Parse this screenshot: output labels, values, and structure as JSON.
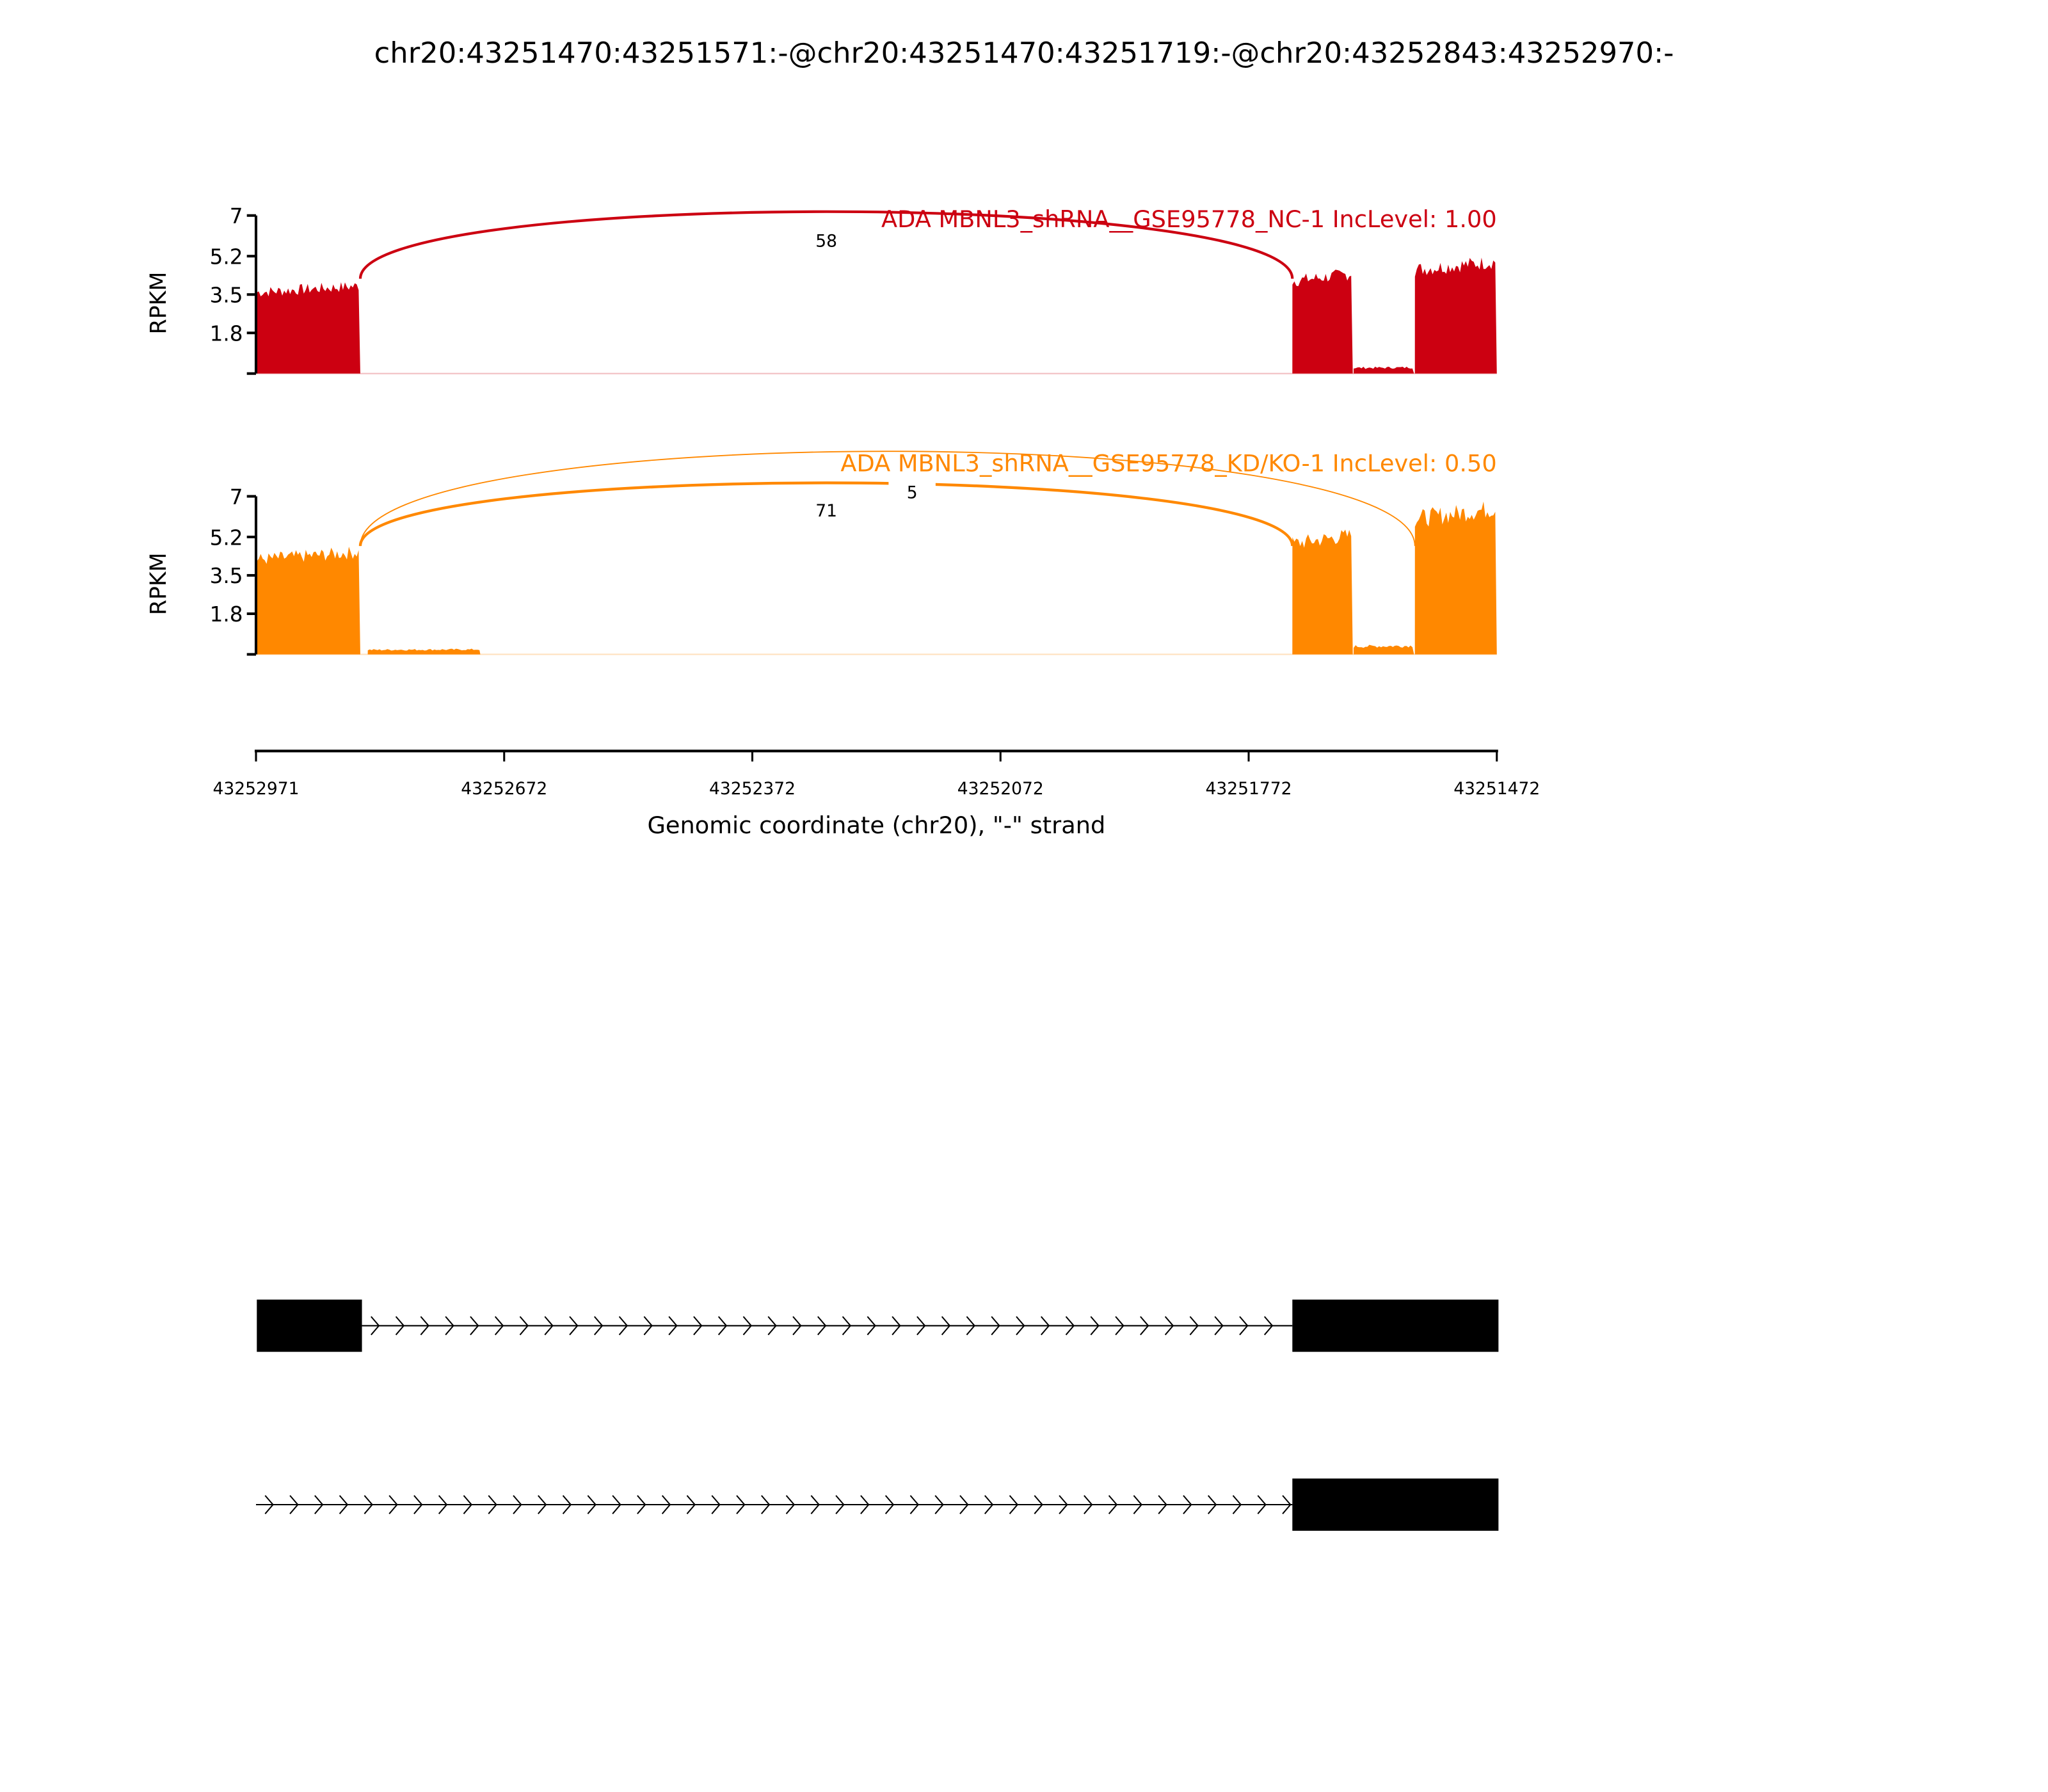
{
  "chart_data": {
    "type": "area",
    "title": "chr20:43251470:43251571:-@chr20:43251470:43251719:-@chr20:43252843:43252970:-",
    "xlabel": "Genomic coordinate (chr20), \"-\" strand",
    "xlim": [
      43252971,
      43251472
    ],
    "x_ticks": [
      "43252971",
      "43252672",
      "43252372",
      "43252072",
      "43251772",
      "43251472"
    ],
    "panels": [
      {
        "label": "ADA MBNL3_shRNA__GSE95778_NC-1 IncLevel: 1.00",
        "color": "#cc0011",
        "ylabel": "RPKM",
        "ylim": [
          0,
          7
        ],
        "y_ticks": [
          "7",
          "5.2",
          "3.5",
          "1.8"
        ],
        "coverage": [
          {
            "start": 43252970,
            "end": 43252845,
            "rpkm": 3.6
          },
          {
            "start": 43251719,
            "end": 43251646,
            "rpkm": 4.1
          },
          {
            "start": 43251645,
            "end": 43251572,
            "rpkm": 0.25
          },
          {
            "start": 43251571,
            "end": 43251472,
            "rpkm": 4.6
          }
        ],
        "junctions": [
          {
            "start": 43252845,
            "end": 43251719,
            "count": "58",
            "peak_rpkm": 5.9
          }
        ]
      },
      {
        "label": "ADA MBNL3_shRNA__GSE95778_KD/KO-1 IncLevel: 0.50",
        "color": "#ff8800",
        "ylabel": "RPKM",
        "ylim": [
          0,
          7
        ],
        "y_ticks": [
          "7",
          "5.2",
          "3.5",
          "1.8"
        ],
        "coverage": [
          {
            "start": 43252970,
            "end": 43252845,
            "rpkm": 4.2
          },
          {
            "start": 43252836,
            "end": 43252700,
            "rpkm": 0.2
          },
          {
            "start": 43251719,
            "end": 43251646,
            "rpkm": 4.9
          },
          {
            "start": 43251645,
            "end": 43251572,
            "rpkm": 0.35
          },
          {
            "start": 43251571,
            "end": 43251472,
            "rpkm": 6.0
          }
        ],
        "junctions": [
          {
            "start": 43252845,
            "end": 43251719,
            "count": "71",
            "peak_rpkm": 6.4
          },
          {
            "start": 43252845,
            "end": 43251571,
            "count": "5",
            "peak_rpkm": 7.2
          }
        ]
      }
    ],
    "isoforms": [
      {
        "exons": [
          [
            43252970,
            43252843
          ],
          [
            43251719,
            43251470
          ]
        ],
        "intron_line": [
          43252843,
          43251719
        ]
      },
      {
        "exons": [
          [
            43251719,
            43251470
          ]
        ],
        "intron_line": [
          43252971,
          43251719
        ]
      }
    ]
  }
}
